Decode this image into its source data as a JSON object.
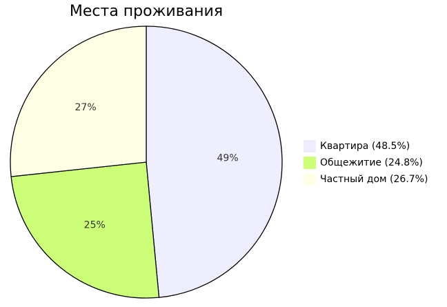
{
  "chart_data": {
    "type": "pie",
    "title": "Места проживания",
    "slices": [
      {
        "name": "Квартира",
        "value": 48.5,
        "label": "49%",
        "legend": "Квартира (48.5%)",
        "color": "#eeeefe"
      },
      {
        "name": "Общежитие",
        "value": 24.8,
        "label": "25%",
        "legend": "Общежитие (24.8%)",
        "color": "#ccff77"
      },
      {
        "name": "Частный дом",
        "value": 26.7,
        "label": "27%",
        "legend": "Частный дом (26.7%)",
        "color": "#ffffe5"
      }
    ],
    "start": "top",
    "direction": "clockwise",
    "legend_position": "right"
  }
}
